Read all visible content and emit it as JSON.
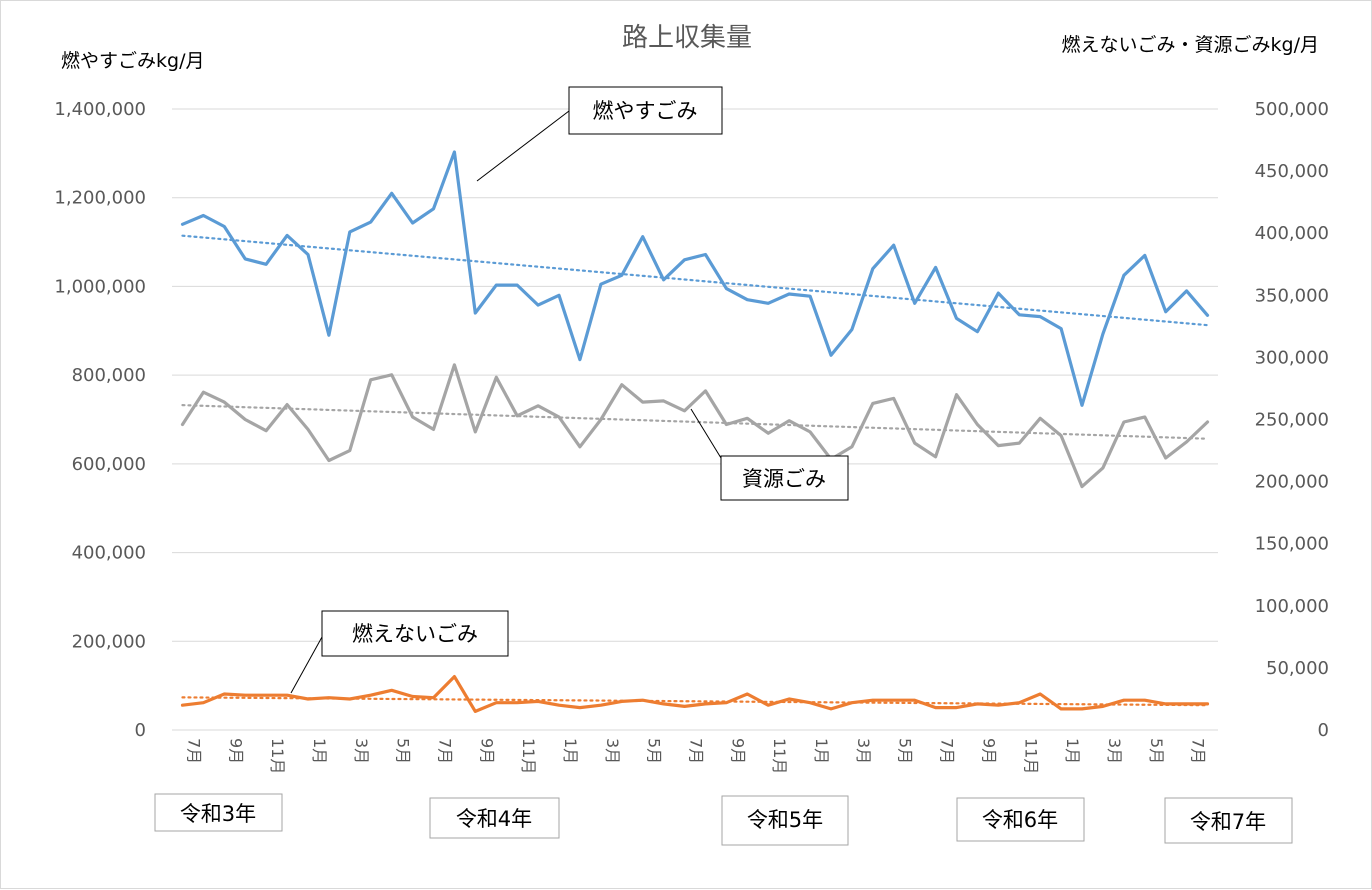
{
  "chart_data": {
    "type": "line",
    "title": "路上収集量",
    "y_left_label": "燃やすごみkg/月",
    "y_right_label": "燃えないごみ・資源ごみkg/月",
    "y_left_range": [
      0,
      1400000
    ],
    "y_right_range": [
      0,
      500000
    ],
    "y_left_ticks": [
      "0",
      "200,000",
      "400,000",
      "600,000",
      "800,000",
      "1,000,000",
      "1,200,000",
      "1,400,000"
    ],
    "y_right_ticks": [
      "0",
      "50,000",
      "100,000",
      "150,000",
      "200,000",
      "250,000",
      "300,000",
      "350,000",
      "400,000",
      "450,000",
      "500,000"
    ],
    "gridlines": true,
    "x_tick_labels": [
      "7月",
      "9月",
      "11月",
      "1月",
      "3月",
      "5月",
      "7月",
      "9月",
      "11月",
      "1月",
      "3月",
      "5月",
      "7月",
      "9月",
      "11月",
      "1月",
      "3月",
      "5月",
      "7月",
      "9月",
      "11月",
      "1月",
      "3月",
      "5月",
      "7月"
    ],
    "year_labels": [
      "令和3年",
      "令和4年",
      "令和5年",
      "令和6年",
      "令和7年"
    ],
    "series": [
      {
        "name": "燃やすごみ",
        "axis": "left",
        "color": "#5b9bd5",
        "trendline": true,
        "values": [
          1140000,
          1160000,
          1135000,
          1062000,
          1050000,
          1115000,
          1072000,
          890000,
          1123000,
          1145000,
          1210000,
          1143000,
          1175000,
          1303000,
          940000,
          1003000,
          1003000,
          958000,
          980000,
          835000,
          1005000,
          1025000,
          1112000,
          1015000,
          1060000,
          1072000,
          995000,
          970000,
          962000,
          983000,
          978000,
          845000,
          903000,
          1040000,
          1093000,
          962000,
          1043000,
          928000,
          898000,
          985000,
          936000,
          932000,
          905000,
          732000,
          893000,
          1025000,
          1070000,
          943000,
          990000,
          935000
        ]
      },
      {
        "name": "資源ごみ",
        "axis": "right",
        "color": "#a5a5a5",
        "trendline": true,
        "values": [
          246000,
          272000,
          264000,
          250000,
          241000,
          262000,
          242000,
          217000,
          225000,
          282000,
          286000,
          252000,
          242000,
          294000,
          240000,
          284000,
          253000,
          261000,
          252000,
          228000,
          250000,
          278000,
          264000,
          265000,
          257000,
          273000,
          246000,
          251000,
          239000,
          249000,
          240000,
          218000,
          228000,
          263000,
          267000,
          231000,
          220000,
          270000,
          246000,
          229000,
          231000,
          251000,
          237000,
          196000,
          211000,
          248000,
          252000,
          219000,
          232000,
          248000
        ]
      },
      {
        "name": "燃えないごみ",
        "axis": "right",
        "color": "#ed7d31",
        "trendline": true,
        "values": [
          20000,
          22000,
          29000,
          28000,
          28000,
          28000,
          25000,
          26000,
          25000,
          28000,
          32000,
          27000,
          26000,
          43000,
          15000,
          22000,
          22000,
          23000,
          20000,
          18000,
          20000,
          23000,
          24000,
          21000,
          19000,
          21000,
          22000,
          29000,
          20000,
          25000,
          22000,
          17000,
          22000,
          24000,
          24000,
          24000,
          18000,
          18000,
          21000,
          20000,
          22000,
          29000,
          17000,
          17000,
          19000,
          24000,
          24000,
          21000,
          21000,
          21000
        ]
      }
    ],
    "callouts": [
      "燃やすごみ",
      "資源ごみ",
      "燃えないごみ"
    ]
  }
}
